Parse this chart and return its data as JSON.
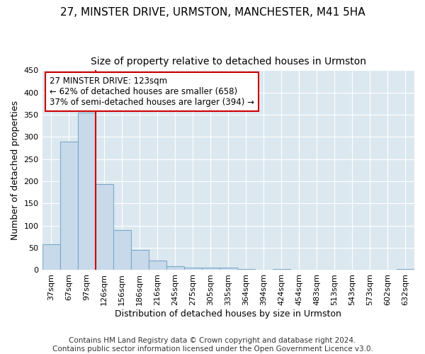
{
  "title1": "27, MINSTER DRIVE, URMSTON, MANCHESTER, M41 5HA",
  "title2": "Size of property relative to detached houses in Urmston",
  "xlabel": "Distribution of detached houses by size in Urmston",
  "ylabel": "Number of detached properties",
  "categories": [
    "37sqm",
    "67sqm",
    "97sqm",
    "126sqm",
    "156sqm",
    "186sqm",
    "216sqm",
    "245sqm",
    "275sqm",
    "305sqm",
    "335sqm",
    "364sqm",
    "394sqm",
    "424sqm",
    "454sqm",
    "483sqm",
    "513sqm",
    "543sqm",
    "573sqm",
    "602sqm",
    "632sqm"
  ],
  "values": [
    58,
    290,
    355,
    193,
    90,
    46,
    21,
    9,
    5,
    5,
    5,
    3,
    0,
    3,
    0,
    0,
    0,
    0,
    0,
    0,
    3
  ],
  "bar_color": "#c8d9ea",
  "bar_edge_color": "#7aaaca",
  "vline_color": "#cc0000",
  "annotation_text": "27 MINSTER DRIVE: 123sqm\n← 62% of detached houses are smaller (658)\n37% of semi-detached houses are larger (394) →",
  "annotation_box_color": "#ffffff",
  "annotation_box_edge": "#cc0000",
  "ylim": [
    0,
    450
  ],
  "yticks": [
    0,
    50,
    100,
    150,
    200,
    250,
    300,
    350,
    400,
    450
  ],
  "background_color": "#ffffff",
  "plot_bg_color": "#dce8f0",
  "grid_color": "#ffffff",
  "footer": "Contains HM Land Registry data © Crown copyright and database right 2024.\nContains public sector information licensed under the Open Government Licence v3.0.",
  "title1_fontsize": 11,
  "title2_fontsize": 10,
  "xlabel_fontsize": 9,
  "ylabel_fontsize": 9,
  "tick_fontsize": 8,
  "footer_fontsize": 7.5,
  "annot_fontsize": 8.5
}
